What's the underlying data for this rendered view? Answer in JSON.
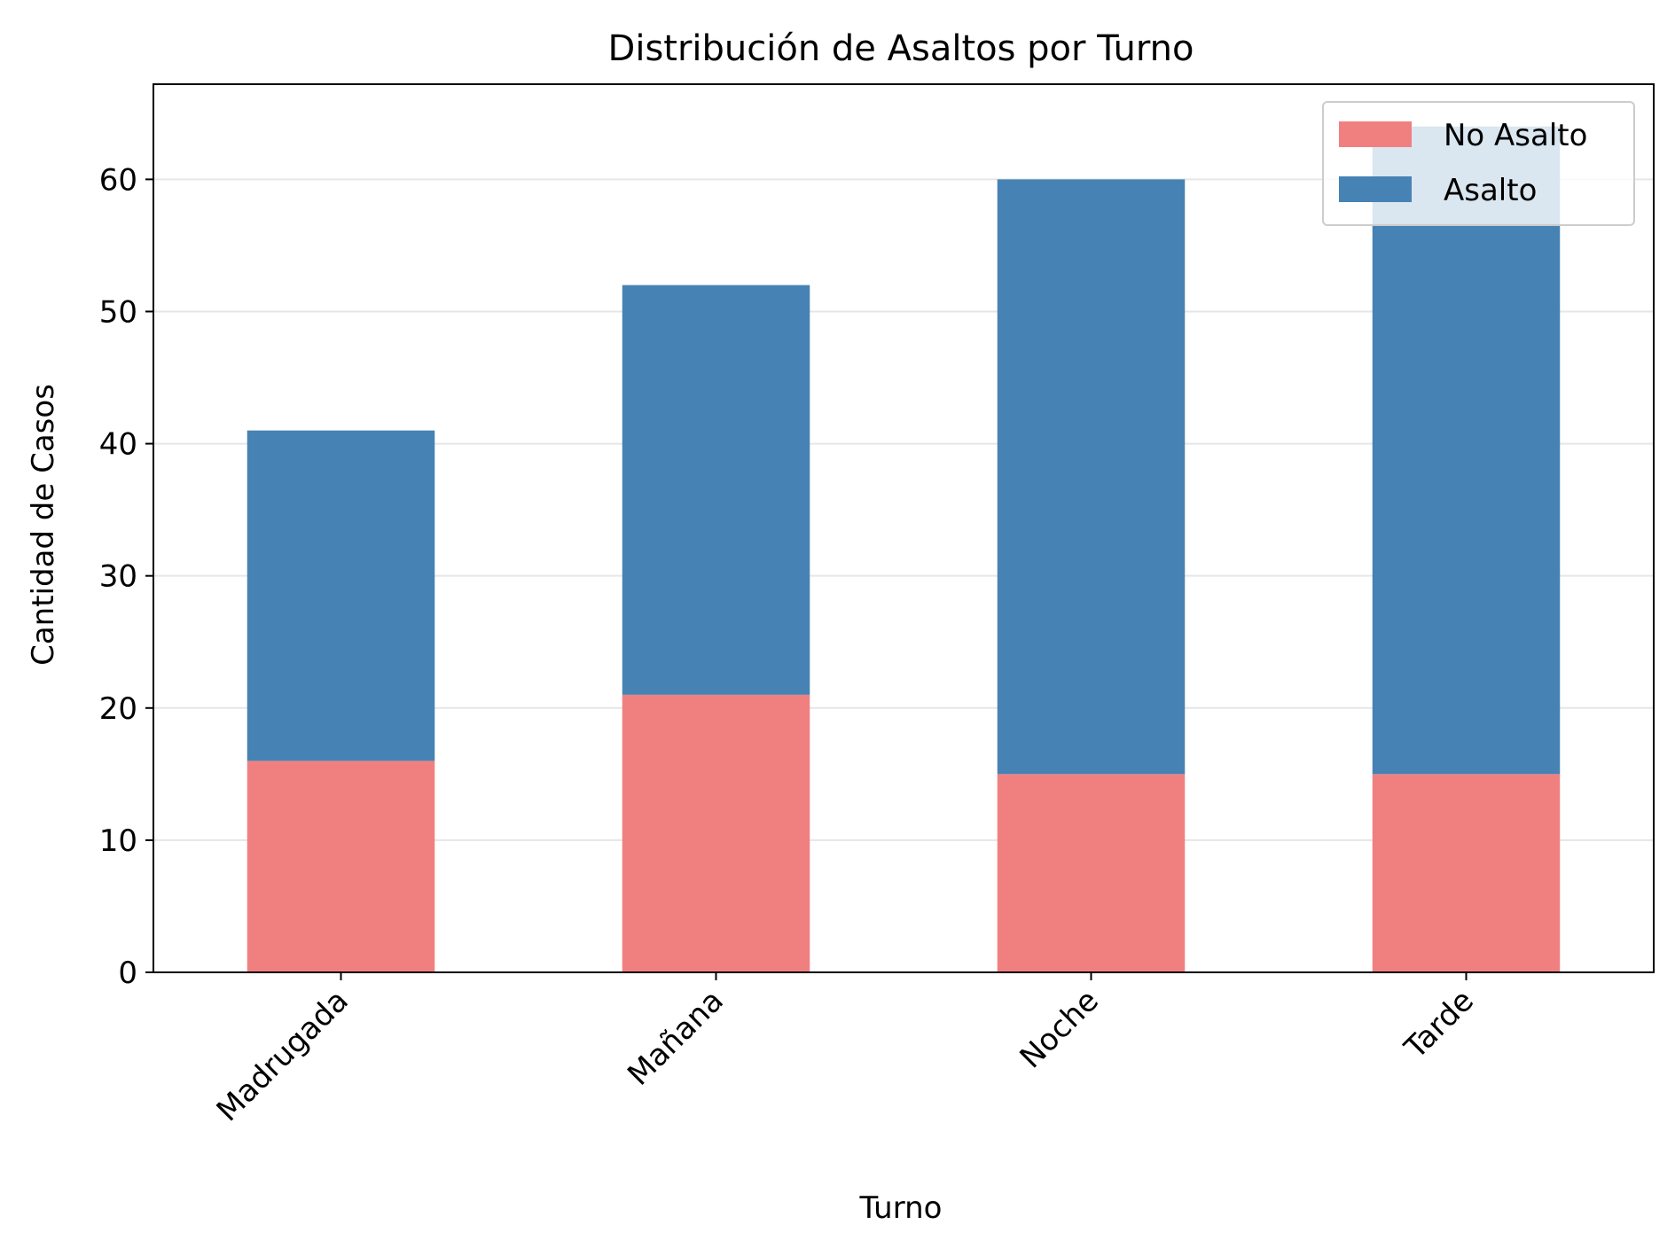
{
  "chart_data": {
    "type": "bar",
    "stacked": true,
    "title": "Distribución de Asaltos por Turno",
    "xlabel": "Turno",
    "ylabel": "Cantidad de Casos",
    "categories": [
      "Madrugada",
      "Mañana",
      "Noche",
      "Tarde"
    ],
    "series": [
      {
        "name": "No Asalto",
        "values": [
          16,
          21,
          15,
          15
        ],
        "color": "#f08080"
      },
      {
        "name": "Asalto",
        "values": [
          25,
          31,
          45,
          49
        ],
        "color": "#4682b4"
      }
    ],
    "ylim": [
      0,
      67.2
    ],
    "yticks": [
      0,
      10,
      20,
      30,
      40,
      50,
      60
    ],
    "grid": "y",
    "legend_position": "top-right"
  }
}
